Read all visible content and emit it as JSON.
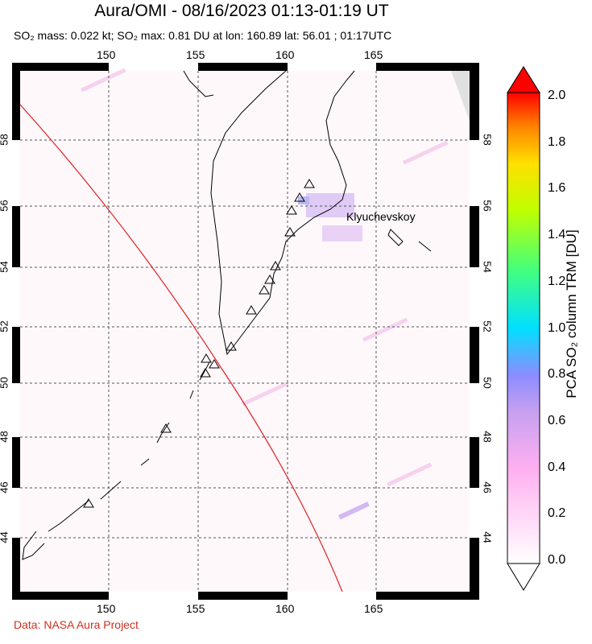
{
  "title": "Aura/OMI - 08/16/2023 01:13-01:19 UT",
  "subtitle": "SO₂ mass: 0.022 kt; SO₂ max: 0.81 DU at lon: 160.89 lat: 56.01 ; 01:17UTC",
  "credit": "Data: NASA Aura Project",
  "map": {
    "lon_ticks": [
      "150",
      "155",
      "160",
      "165"
    ],
    "lat_ticks": [
      "58",
      "56",
      "54",
      "52",
      "50",
      "48",
      "46",
      "44"
    ],
    "volcano_label": "Klyuchevskoy"
  },
  "colorbar": {
    "label": "PCA SO₂ column TRM [DU]",
    "ticks": [
      "2.0",
      "1.8",
      "1.6",
      "1.4",
      "1.2",
      "1.0",
      "0.8",
      "0.6",
      "0.4",
      "0.2",
      "0.0"
    ],
    "colors": [
      "#ffffff",
      "#ffb0f0",
      "#c8a0f0",
      "#8c8cff",
      "#00e0ff",
      "#40ff80",
      "#c0ff00",
      "#ffe000",
      "#ff8000",
      "#ff0000"
    ]
  }
}
